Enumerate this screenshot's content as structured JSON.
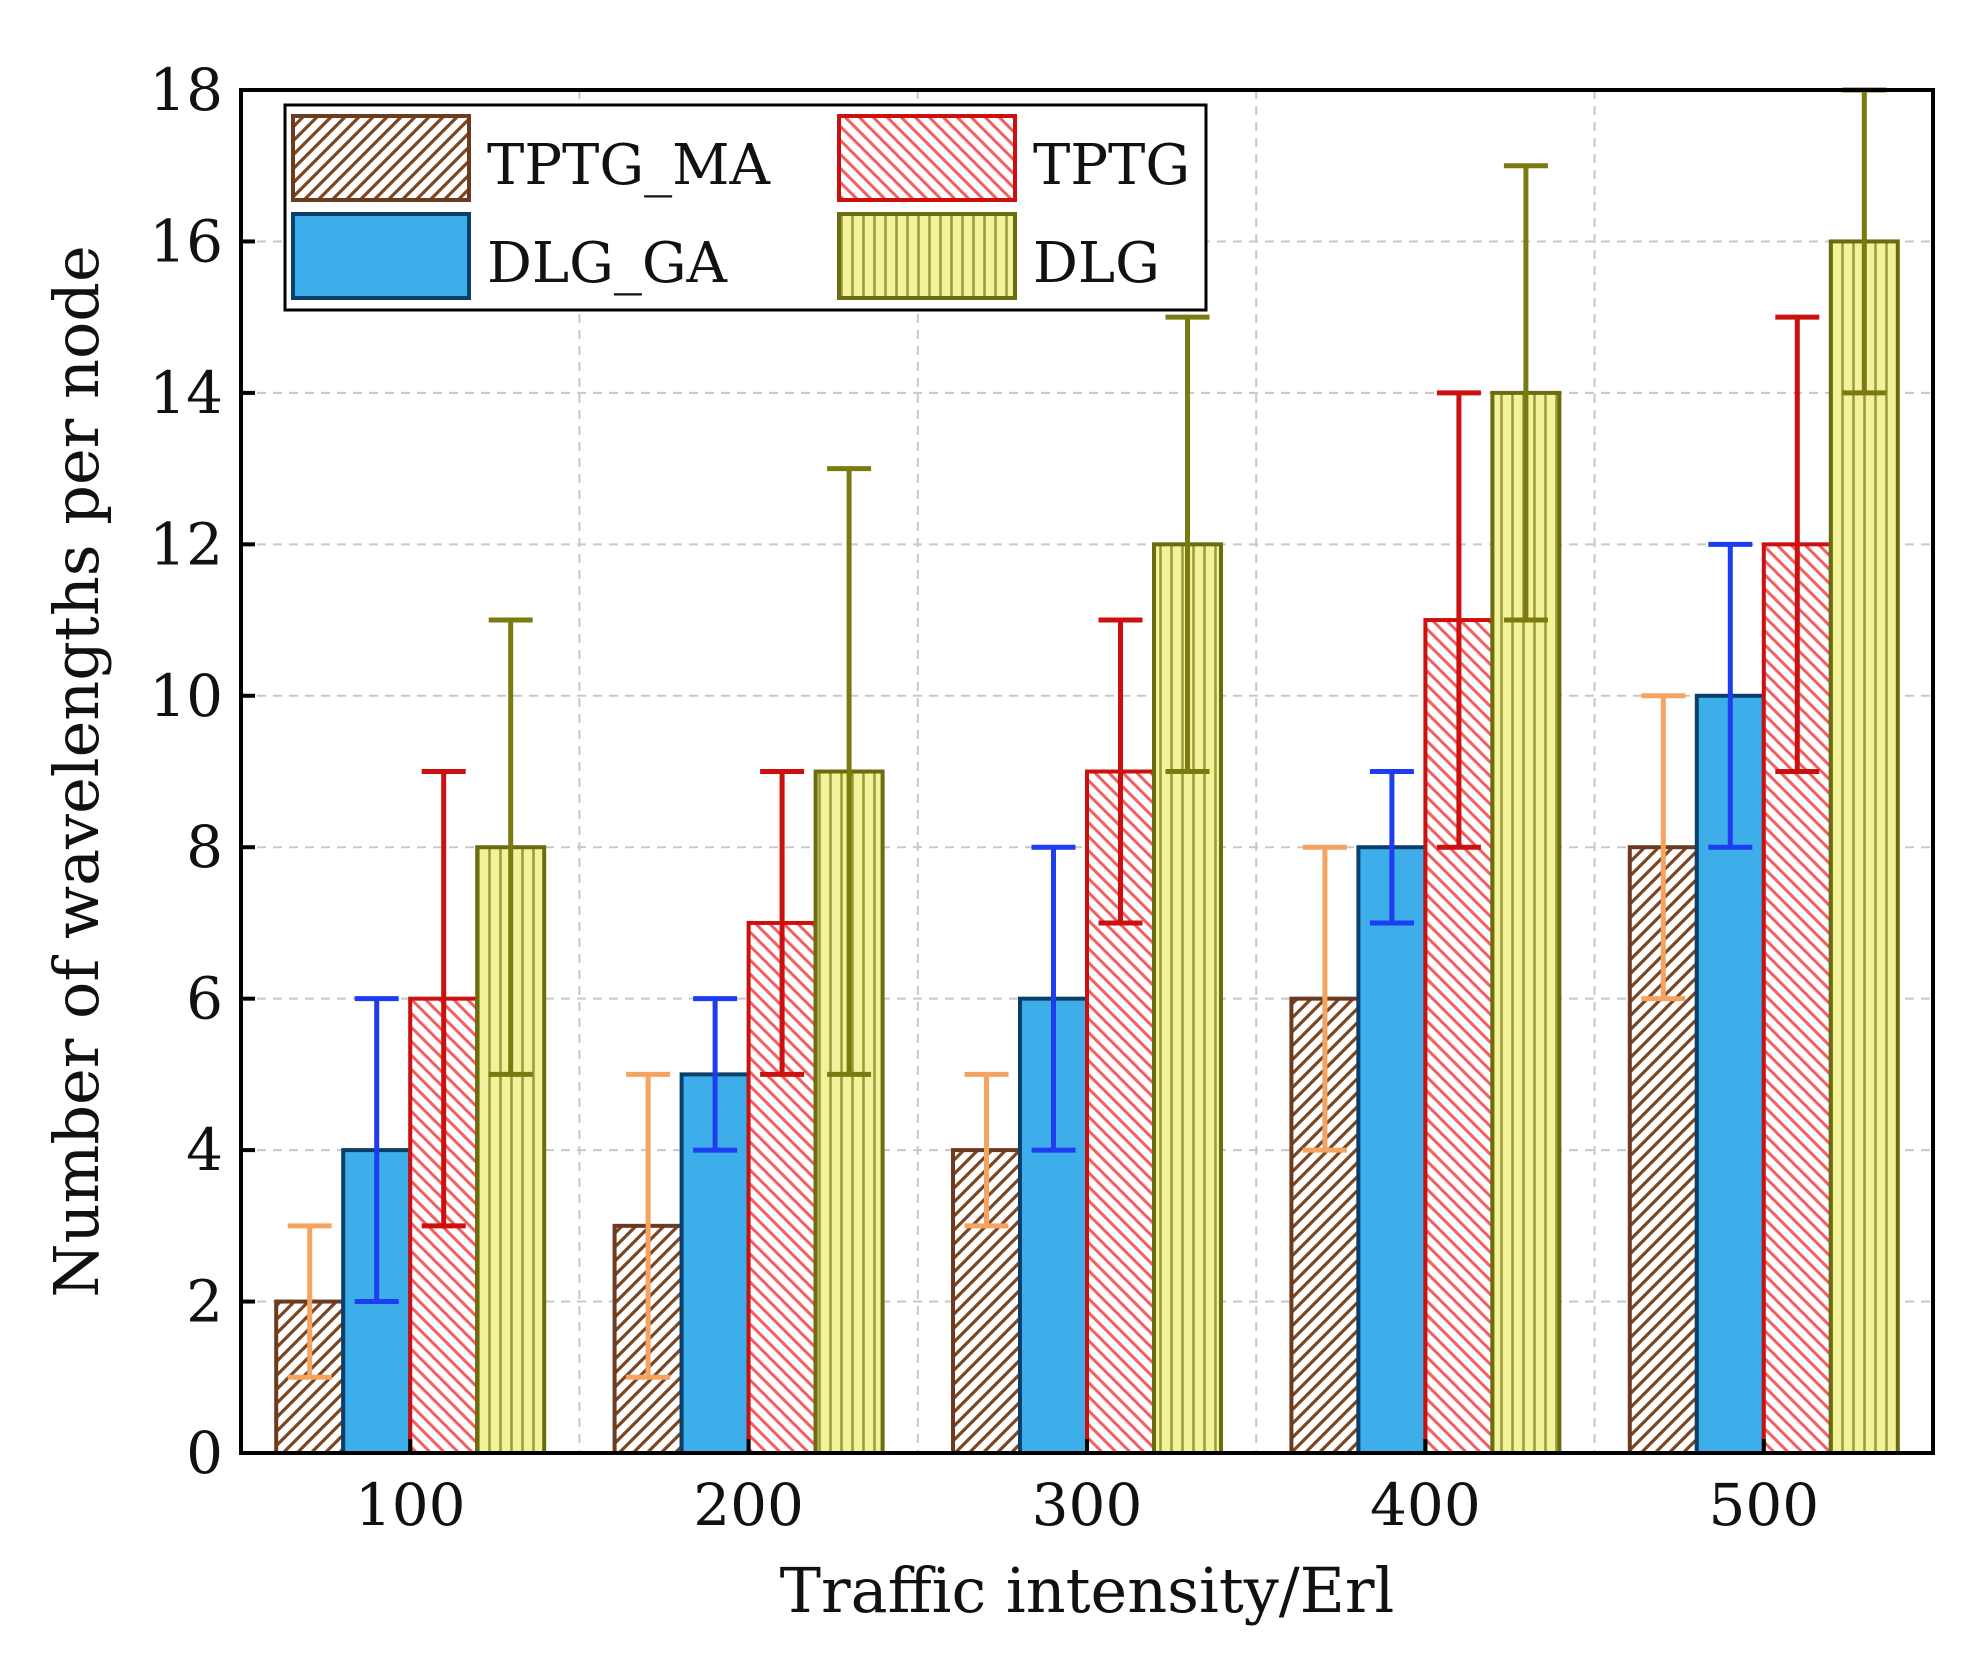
{
  "chart_data": {
    "type": "bar",
    "title": "",
    "xlabel": "Traffic intensity/Erl",
    "ylabel": "Number of wavelengths per node",
    "categories": [
      "100",
      "200",
      "300",
      "400",
      "500"
    ],
    "ylim": [
      0,
      18
    ],
    "yticks": [
      0,
      2,
      4,
      6,
      8,
      10,
      12,
      14,
      16,
      18
    ],
    "grid": true,
    "legend_position": "top-left",
    "series": [
      {
        "name": "TPTG_MA",
        "values": [
          2,
          3,
          4,
          6,
          8
        ],
        "err_low": [
          1,
          1,
          3,
          4,
          6
        ],
        "err_high": [
          3,
          5,
          5,
          8,
          10
        ],
        "fill": "#ffffff",
        "stroke": "#6b3a1f",
        "hatch": "diag-right",
        "hatch_color": "#7a4520",
        "error_color": "#f4a460"
      },
      {
        "name": "DLG_GA",
        "values": [
          4,
          5,
          6,
          8,
          10
        ],
        "err_low": [
          2,
          4,
          4,
          7,
          8
        ],
        "err_high": [
          6,
          6,
          8,
          9,
          12
        ],
        "fill": "#3daee9",
        "stroke": "#0b3f6b",
        "hatch": "none",
        "hatch_color": "#3daee9",
        "error_color": "#1e3cf0"
      },
      {
        "name": "TPTG",
        "values": [
          6,
          7,
          9,
          11,
          12
        ],
        "err_low": [
          3,
          5,
          7,
          8,
          9
        ],
        "err_high": [
          9,
          9,
          11,
          14,
          15
        ],
        "fill": "#ffffff",
        "stroke": "#cc1010",
        "hatch": "diag-left",
        "hatch_color": "#f06060",
        "error_color": "#cc1010"
      },
      {
        "name": "DLG",
        "values": [
          8,
          9,
          12,
          14,
          16
        ],
        "err_low": [
          5,
          5,
          9,
          11,
          14
        ],
        "err_high": [
          11,
          13,
          15,
          17,
          18
        ],
        "fill": "#f2f29a",
        "stroke": "#6b6b10",
        "hatch": "vertical",
        "hatch_color": "#9a9a3a",
        "error_color": "#7a7a10"
      }
    ]
  }
}
